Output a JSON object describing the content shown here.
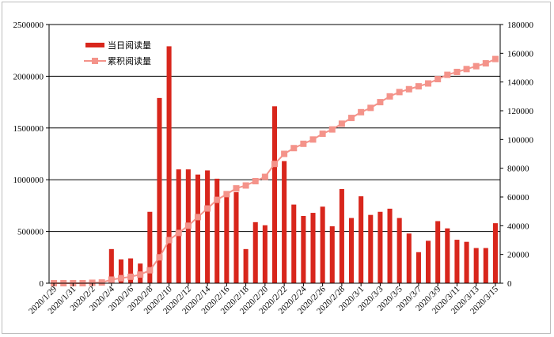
{
  "chart_data": {
    "type": "bar+line",
    "dates": [
      "2020/1/29",
      "2020/1/30",
      "2020/1/31",
      "2020/2/1",
      "2020/2/2",
      "2020/2/3",
      "2020/2/4",
      "2020/2/5",
      "2020/2/6",
      "2020/2/7",
      "2020/2/8",
      "2020/2/9",
      "2020/2/10",
      "2020/2/11",
      "2020/2/12",
      "2020/2/13",
      "2020/2/14",
      "2020/2/15",
      "2020/2/16",
      "2020/2/17",
      "2020/2/18",
      "2020/2/19",
      "2020/2/20",
      "2020/2/21",
      "2020/2/22",
      "2020/2/23",
      "2020/2/24",
      "2020/2/25",
      "2020/2/26",
      "2020/2/27",
      "2020/2/28",
      "2020/2/29",
      "2020/3/1",
      "2020/3/2",
      "2020/3/3",
      "2020/3/4",
      "2020/3/5",
      "2020/3/6",
      "2020/3/7",
      "2020/3/8",
      "2020/3/9",
      "2020/3/10",
      "2020/3/11",
      "2020/3/12",
      "2020/3/13",
      "2020/3/14",
      "2020/3/15"
    ],
    "x_tick_labels": [
      "2020/1/29",
      "2020/1/31",
      "2020/2/2",
      "2020/2/4",
      "2020/2/6",
      "2020/2/8",
      "2020/2/10",
      "2020/2/12",
      "2020/2/14",
      "2020/2/16",
      "2020/2/18",
      "2020/2/20",
      "2020/2/22",
      "2020/2/24",
      "2020/2/26",
      "2020/2/28",
      "2020/3/1",
      "2020/3/3",
      "2020/3/5",
      "2020/3/7",
      "2020/3/9",
      "2020/3/11",
      "2020/3/13",
      "2020/3/15"
    ],
    "series": [
      {
        "name": "当日阅读量",
        "axis": "left",
        "kind": "bar",
        "color": "#d8261c",
        "values": [
          0,
          0,
          0,
          0,
          0,
          0,
          330000,
          230000,
          240000,
          190000,
          690000,
          1790000,
          2290000,
          1100000,
          1100000,
          1050000,
          1090000,
          1010000,
          850000,
          880000,
          330000,
          590000,
          560000,
          1710000,
          1180000,
          760000,
          650000,
          680000,
          740000,
          550000,
          910000,
          630000,
          840000,
          660000,
          690000,
          720000,
          630000,
          480000,
          300000,
          410000,
          600000,
          530000,
          420000,
          400000,
          340000,
          340000,
          580000
        ]
      },
      {
        "name": "累积阅读量",
        "axis": "right",
        "kind": "line",
        "color": "#f4938a",
        "values": [
          0,
          0,
          0,
          0,
          300,
          500,
          2500,
          3500,
          4500,
          6000,
          9000,
          18000,
          30000,
          35000,
          40000,
          46000,
          52000,
          58000,
          62000,
          66000,
          68000,
          71000,
          74000,
          83000,
          90000,
          94000,
          97000,
          100000,
          104000,
          107000,
          111000,
          115000,
          119000,
          122000,
          126000,
          130000,
          133000,
          135000,
          137000,
          139000,
          142000,
          145000,
          147000,
          149000,
          151000,
          153000,
          156000
        ]
      }
    ],
    "y_left": {
      "min": 0,
      "max": 2500000,
      "ticks": [
        "0",
        "500000",
        "1000000",
        "1500000",
        "2000000",
        "2500000"
      ]
    },
    "y_right": {
      "min": 0,
      "max": 180000,
      "ticks": [
        "0",
        "20000",
        "40000",
        "60000",
        "80000",
        "100000",
        "120000",
        "140000",
        "160000",
        "180000"
      ]
    },
    "grid": "horizontal",
    "legend": "top-left"
  }
}
